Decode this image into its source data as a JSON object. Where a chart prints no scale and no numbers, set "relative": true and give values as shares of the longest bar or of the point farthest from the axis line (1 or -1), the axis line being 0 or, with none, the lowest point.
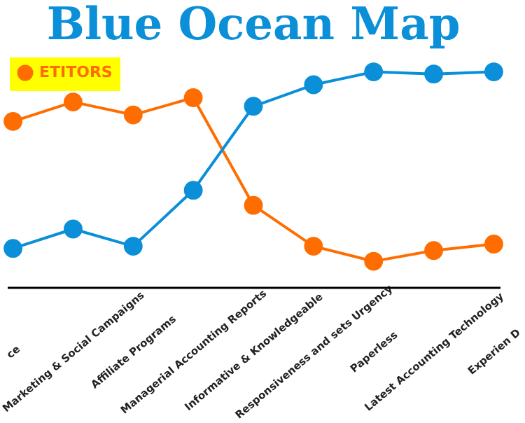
{
  "chart_data": {
    "type": "line",
    "title": "Blue Ocean Map",
    "relative": true,
    "marker": "circle",
    "legend": "top left",
    "grid": false,
    "categories": [
      "ce",
      "Marketing & Social Campaigns",
      "Affiliate Programs",
      "Managerial Accounting Reports",
      "Informative & Knowledgeable",
      "Responsiveness and sets Urgency",
      "Paperless",
      "Latest Accounting Technology",
      "Experien D"
    ],
    "series": [
      {
        "name": "ETITORS",
        "color": "#ff6d00",
        "values": [
          0.77,
          0.86,
          0.8,
          0.88,
          0.38,
          0.19,
          0.12,
          0.17,
          0.2
        ]
      },
      {
        "color": "#0a8fd8",
        "values": [
          0.18,
          0.27,
          0.19,
          0.45,
          0.84,
          0.94,
          1.0,
          0.99,
          1.0
        ]
      }
    ]
  }
}
